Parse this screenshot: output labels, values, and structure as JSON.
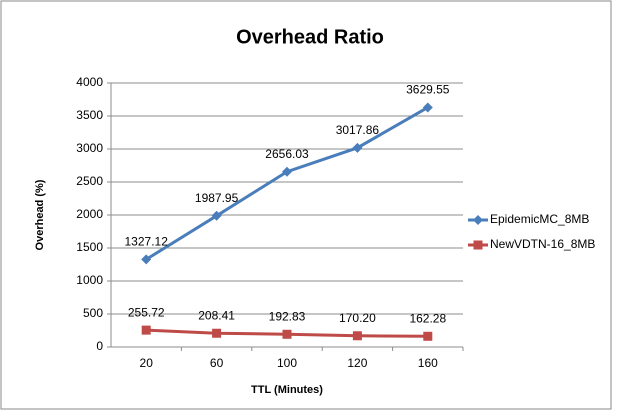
{
  "chart_data": {
    "type": "line",
    "title": "Overhead Ratio",
    "x_label": "TTL (Minutes)",
    "y_label": "Overhead (%)",
    "categories": [
      "20",
      "60",
      "100",
      "120",
      "160"
    ],
    "series": [
      {
        "name": "EpidemicMC_8MB",
        "color": "#4a7ebb",
        "marker": "diamond",
        "values": [
          1327.12,
          1987.95,
          2656.03,
          3017.86,
          3629.55
        ],
        "value_labels": [
          "1327.12",
          "1987.95",
          "2656.03",
          "3017.86",
          "3629.55"
        ]
      },
      {
        "name": "NewVDTN-16_8MB",
        "color": "#be4b48",
        "marker": "square",
        "values": [
          255.72,
          208.41,
          192.83,
          170.2,
          162.28
        ],
        "value_labels": [
          "255.72",
          "208.41",
          "192.83",
          "170.20",
          "162.28"
        ]
      }
    ],
    "ylim": [
      0,
      4000
    ],
    "yticks": [
      0,
      500,
      1000,
      1500,
      2000,
      2500,
      3000,
      3500,
      4000
    ],
    "grid": true,
    "legend": "right"
  }
}
